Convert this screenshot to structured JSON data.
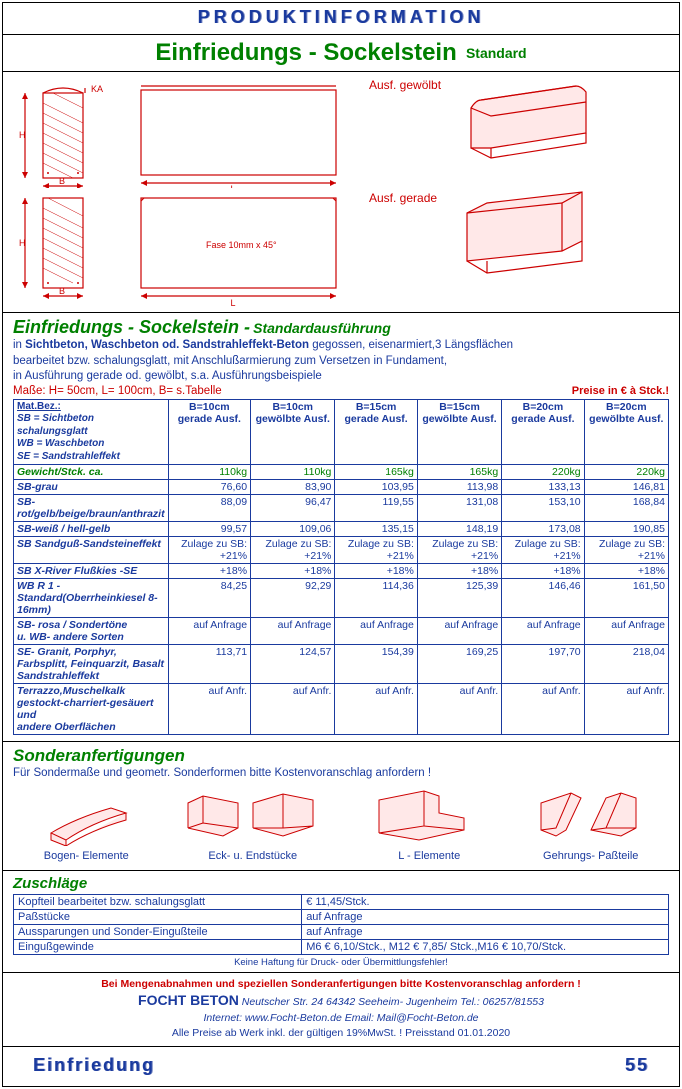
{
  "header": "PRODUKTINFORMATION",
  "title_main": "Einfriedungs - Sockelstein",
  "title_sub": "Standard",
  "fase_label": "Fase 10mm x 45°",
  "ka_label": "KA",
  "ausf_curved": "Ausf. gewölbt",
  "ausf_straight": "Ausf. gerade",
  "product_heading": "Einfriedungs - Sockelstein -",
  "product_heading_sub": "Standardausführung",
  "desc_line1": "in Sichtbeton, Waschbeton od. Sandstrahleffekt-Beton gegossen, eisenarmiert,3 Längsflächen",
  "desc_line2": "bearbeitet bzw. schalungsglatt, mit Anschlußarmierung zum Versetzen in Fundament,",
  "desc_line3": "in Ausführung gerade od. gewölbt, s.a. Ausführungsbeispiele",
  "dims": "Maße: H= 50cm, L= 100cm, B= s.Tabelle",
  "price_note": "Preise in €  à Stck.!",
  "legend_title": "Mat.Bez.:",
  "legend_sb": "SB = Sichtbeton schalungsglatt",
  "legend_wb": "WB = Waschbeton",
  "legend_se": "SE = Sandstrahleffekt",
  "columns": [
    {
      "b": "B=10cm",
      "a": "gerade Ausf."
    },
    {
      "b": "B=10cm",
      "a": "gewölbte Ausf."
    },
    {
      "b": "B=15cm",
      "a": "gerade Ausf."
    },
    {
      "b": "B=15cm",
      "a": "gewölbte Ausf."
    },
    {
      "b": "B=20cm",
      "a": "gerade Ausf."
    },
    {
      "b": "B=20cm",
      "a": "gewölbte Ausf."
    }
  ],
  "rows": [
    {
      "label": "Gewicht/Stck. ca.",
      "class": "green",
      "v": [
        "110kg",
        "110kg",
        "165kg",
        "165kg",
        "220kg",
        "220kg"
      ]
    },
    {
      "label": "SB-grau",
      "v": [
        "76,60",
        "83,90",
        "103,95",
        "113,98",
        "133,13",
        "146,81"
      ]
    },
    {
      "label": "SB-\nrot/gelb/beige/braun/anthrazit",
      "v": [
        "88,09",
        "96,47",
        "119,55",
        "131,08",
        "153,10",
        "168,84"
      ]
    },
    {
      "label": "SB-weiß / hell-gelb",
      "v": [
        "99,57",
        "109,06",
        "135,15",
        "148,19",
        "173,08",
        "190,85"
      ]
    },
    {
      "label": "SB Sandguß-Sandsteineffekt",
      "v": [
        "Zulage zu SB: +21%",
        "Zulage zu SB: +21%",
        "Zulage zu SB: +21%",
        "Zulage zu SB: +21%",
        "Zulage zu SB: +21%",
        "Zulage zu SB: +21%"
      ]
    },
    {
      "label": "SB X-River Flußkies -SE",
      "v": [
        "+18%",
        "+18%",
        "+18%",
        "+18%",
        "+18%",
        "+18%"
      ]
    },
    {
      "label": "WB R 1 -\nStandard(Oberrheinkiesel 8-16mm)",
      "v": [
        "84,25",
        "92,29",
        "114,36",
        "125,39",
        "146,46",
        "161,50"
      ]
    },
    {
      "label": "SB- rosa / Sondertöne\nu. WB- andere Sorten",
      "v": [
        "auf Anfrage",
        "auf Anfrage",
        "auf Anfrage",
        "auf Anfrage",
        "auf Anfrage",
        "auf Anfrage"
      ]
    },
    {
      "label": "SE- Granit, Porphyr,\nFarbsplitt, Feinquarzit, Basalt\nSandstrahleffekt",
      "v": [
        "113,71",
        "124,57",
        "154,39",
        "169,25",
        "197,70",
        "218,04"
      ]
    },
    {
      "label": "Terrazzo,Muschelkalk\ngestockt-charriert-gesäuert und\nandere Oberflächen",
      "v": [
        "auf Anfr.",
        "auf Anfr.",
        "auf Anfr.",
        "auf Anfr.",
        "auf Anfr.",
        "auf Anfr."
      ]
    }
  ],
  "sonder_title": "Sonderanfertigungen",
  "sonder_note": "Für Sondermaße  und geometr. Sonderformen bitte Kostenvoranschlag anfordern !",
  "sonder_items": [
    "Bogen- Elemente",
    "Eck- u. Endstücke",
    "L - Elemente",
    "Gehrungs- Paßteile"
  ],
  "zuschlag_title": "Zuschläge",
  "zuschlag_rows": [
    [
      "Kopfteil bearbeitet bzw. schalungsglatt",
      "€ 11,45/Stck."
    ],
    [
      "Paßstücke",
      "auf Anfrage"
    ],
    [
      "Aussparungen und Sonder-Eingußteile",
      "auf Anfrage"
    ],
    [
      "Eingußgewinde",
      "M6   € 6,10/Stck., M12  € 7,85/ Stck.,M16  € 10,70/Stck."
    ]
  ],
  "no_liability": "Keine Haftung für Druck- oder Übermittlungsfehler!",
  "company_note": "Bei Mengenabnahmen und speziellen Sonderanfertigungen bitte Kostenvoranschlag anfordern !",
  "company_name": "FOCHT BETON",
  "company_addr": "Neutscher Str. 24   64342 Seeheim- Jugenheim   Tel.: 06257/81553",
  "company_web": "Internet: www.Focht-Beton.de     Email: Mail@Focht-Beton.de",
  "company_price": "Alle Preise ab Werk inkl. der gültigen 19%MwSt. !   Preisstand 01.01.2020",
  "footer_text": "Einfriedung",
  "page_number": "55"
}
